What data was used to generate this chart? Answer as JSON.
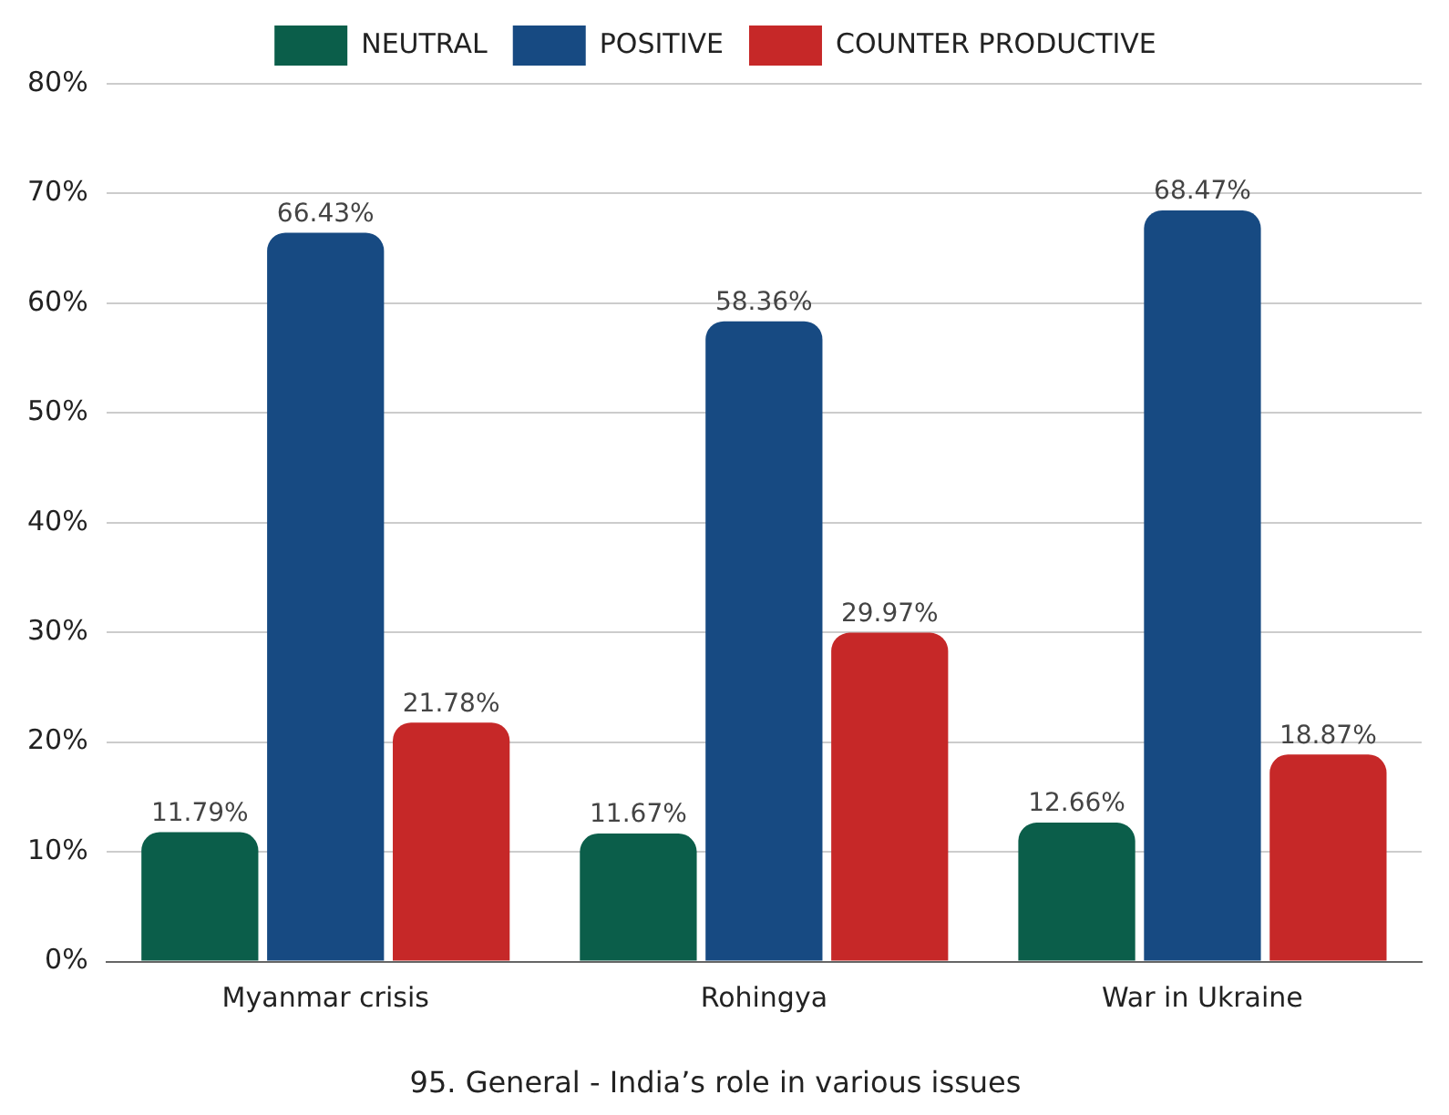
{
  "chart_data": {
    "type": "bar",
    "title": "95. General - India’s role in various issues",
    "categories": [
      "Myanmar crisis",
      "Rohingya",
      "War in Ukraine"
    ],
    "series": [
      {
        "name": "NEUTRAL",
        "color": "#0b5e4a",
        "values": [
          11.79,
          11.67,
          12.66
        ],
        "value_labels": [
          "11.79%",
          "11.67%",
          "12.66%"
        ]
      },
      {
        "name": "POSITIVE",
        "color": "#174a82",
        "values": [
          66.43,
          58.36,
          68.47
        ],
        "value_labels": [
          "66.43%",
          "58.36%",
          "68.47%"
        ]
      },
      {
        "name": "COUNTER PRODUCTIVE",
        "color": "#c62828",
        "values": [
          21.78,
          29.97,
          18.87
        ],
        "value_labels": [
          "21.78%",
          "29.97%",
          "18.87%"
        ]
      }
    ],
    "ylim": [
      0,
      80
    ],
    "yticks": [
      {
        "value": 0,
        "label": "0%"
      },
      {
        "value": 10,
        "label": "10%"
      },
      {
        "value": 20,
        "label": "20%"
      },
      {
        "value": 30,
        "label": "30%"
      },
      {
        "value": 40,
        "label": "40%"
      },
      {
        "value": 50,
        "label": "50%"
      },
      {
        "value": 60,
        "label": "60%"
      },
      {
        "value": 70,
        "label": "70%"
      },
      {
        "value": 80,
        "label": "80%"
      }
    ],
    "grid": "y",
    "legend": "top"
  }
}
